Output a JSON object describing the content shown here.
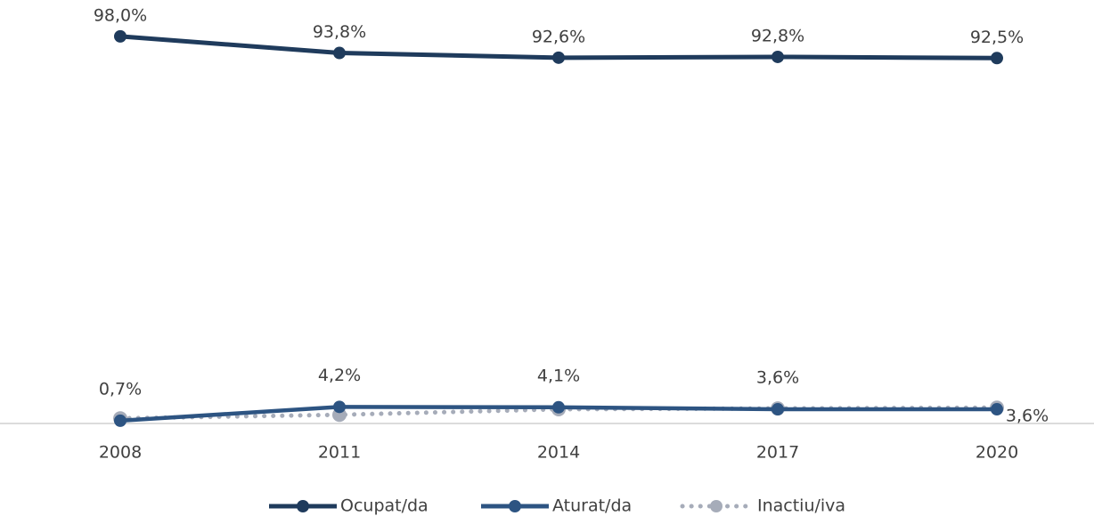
{
  "chart_data": {
    "type": "line",
    "categories": [
      "2008",
      "2011",
      "2014",
      "2017",
      "2020"
    ],
    "ylim": [
      0,
      100
    ],
    "series": [
      {
        "name": "Ocupat/da",
        "color": "#1f3b5c",
        "values": [
          98.0,
          93.8,
          92.6,
          92.8,
          92.5
        ],
        "value_labels": [
          "98,0%",
          "93,8%",
          "92,6%",
          "92,8%",
          "92,5%"
        ]
      },
      {
        "name": "Aturat/da",
        "color": "#2d5482",
        "values": [
          0.7,
          4.2,
          4.1,
          3.6,
          3.6
        ],
        "value_labels": [
          "0,7%",
          "4,2%",
          "4,1%",
          "3,6%",
          "3,6%"
        ]
      },
      {
        "name": "Inactiu/iva",
        "color": "#a6acb9",
        "values": [
          1.3,
          2.2,
          3.6,
          3.8,
          4.0
        ],
        "dotted": true
      }
    ]
  }
}
